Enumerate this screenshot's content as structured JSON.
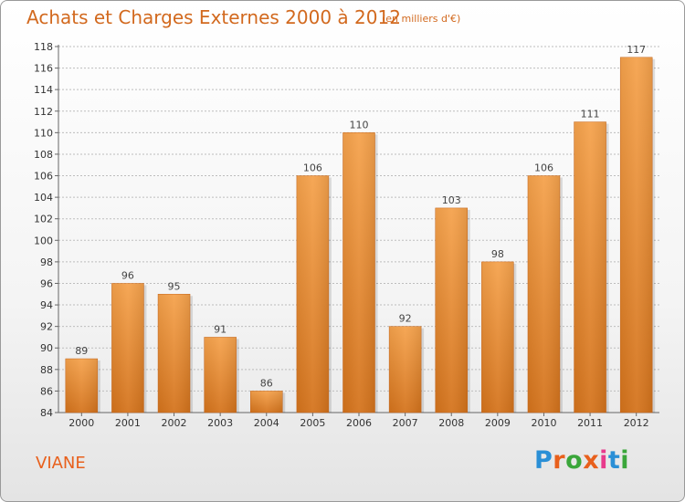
{
  "header": {
    "title": "Achats et Charges Externes 2000 à 2012",
    "subtitle": "(en milliers d'€)"
  },
  "footer": {
    "commune": "VIANE",
    "logo_text": "Proxiti",
    "logo_colors": [
      "#2a8fd6",
      "#e8601c",
      "#3aa63a",
      "#e8601c",
      "#e83a8c",
      "#2a8fd6",
      "#3aa63a"
    ]
  },
  "colors": {
    "bar_top": "#f5a24c",
    "bar_bottom": "#d4731c",
    "title": "#d2691e",
    "grid": "#bdbdbd"
  },
  "chart_data": {
    "type": "bar",
    "categories": [
      "2000",
      "2001",
      "2002",
      "2003",
      "2004",
      "2005",
      "2006",
      "2007",
      "2008",
      "2009",
      "2010",
      "2011",
      "2012"
    ],
    "values": [
      89,
      96,
      95,
      91,
      86,
      106,
      110,
      92,
      103,
      98,
      106,
      111,
      117
    ],
    "ylim": [
      84,
      118
    ],
    "yticks": [
      84,
      86,
      88,
      90,
      92,
      94,
      96,
      98,
      100,
      102,
      104,
      106,
      108,
      110,
      112,
      114,
      116,
      118
    ],
    "grid": true
  }
}
